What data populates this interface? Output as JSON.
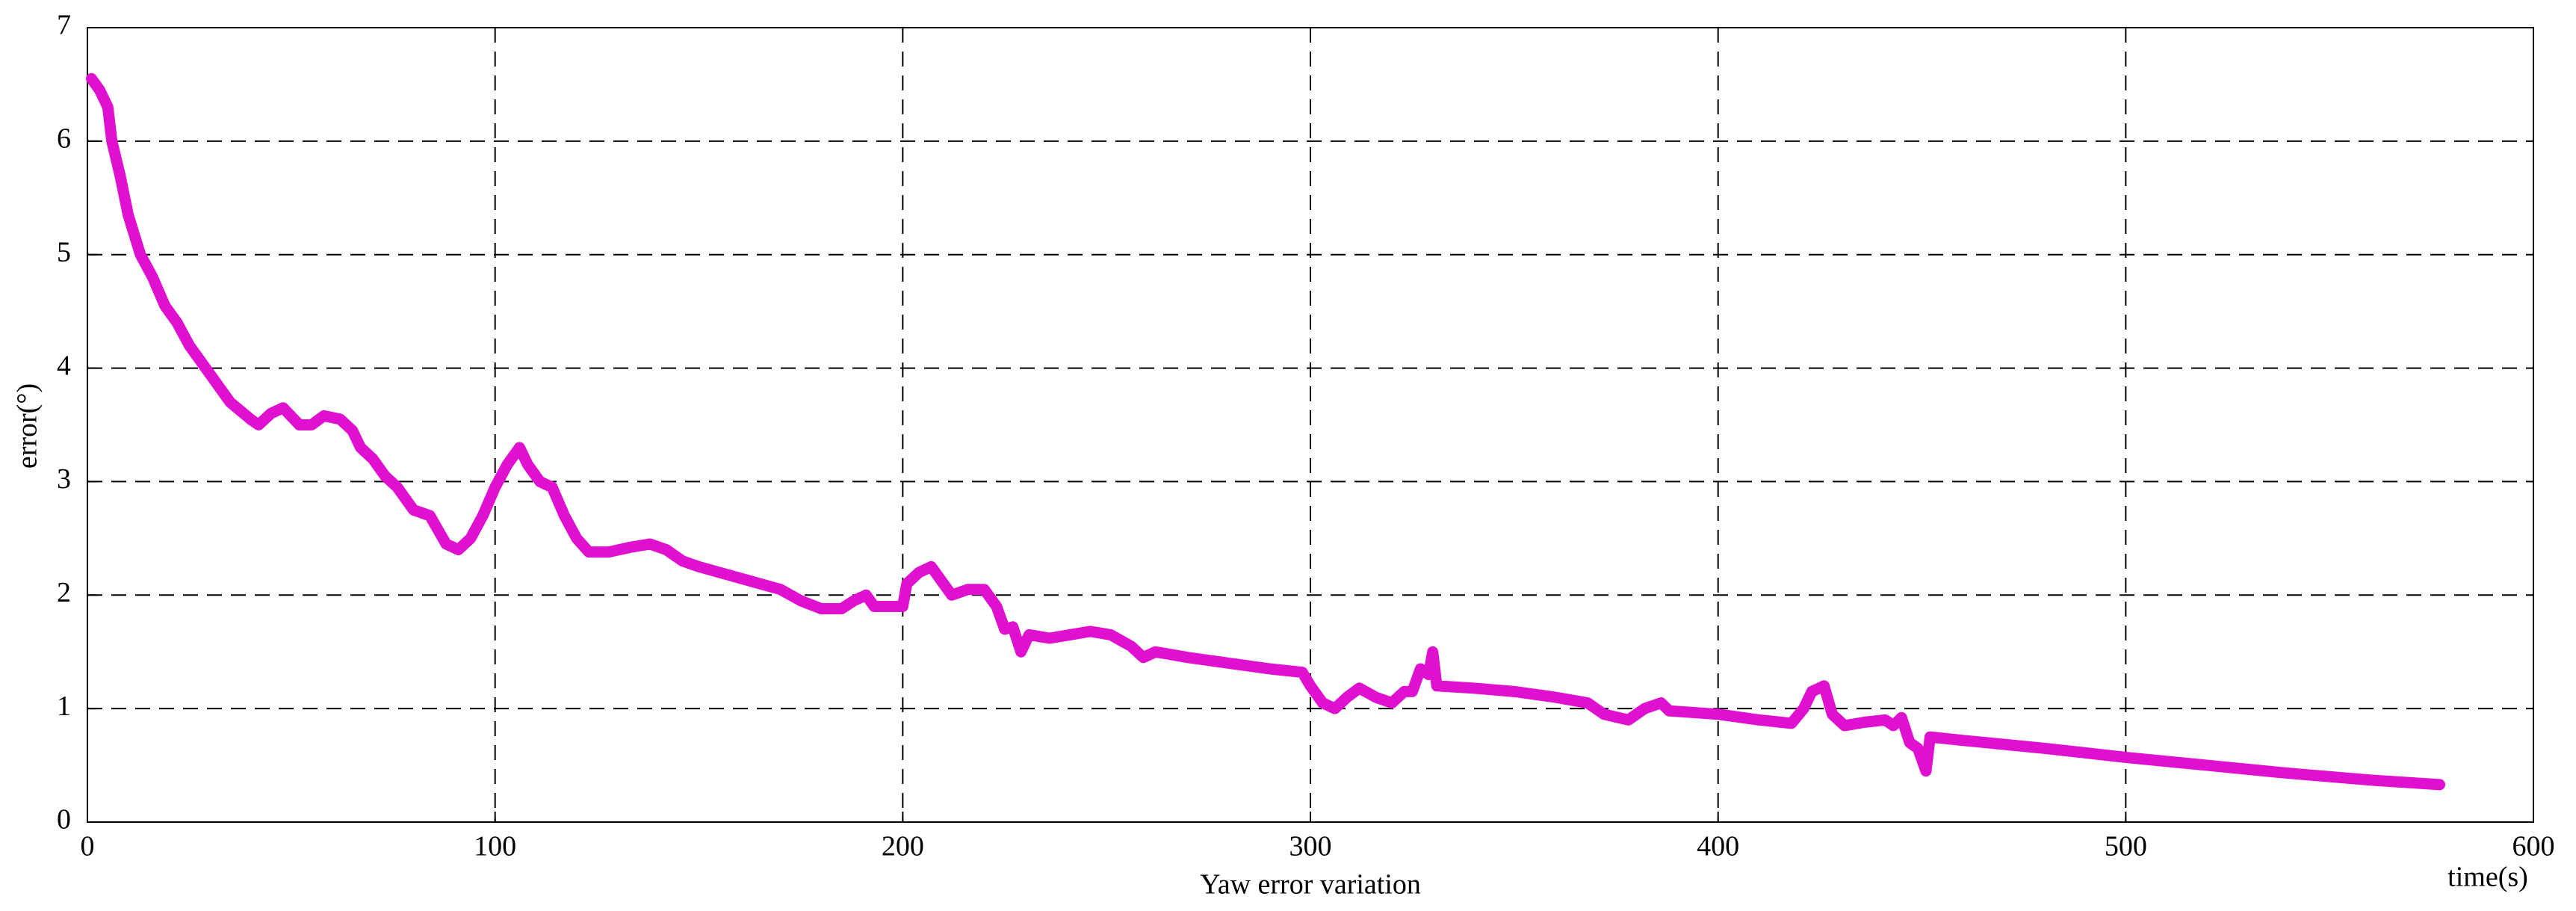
{
  "chart_data": {
    "type": "line",
    "title": "Yaw error variation",
    "xlabel": "time(s)",
    "ylabel": "error(°)",
    "xlim": [
      0,
      600
    ],
    "xticks": [
      0,
      100,
      200,
      300,
      400,
      500,
      600
    ],
    "ylim": [
      0,
      7
    ],
    "yticks": [
      0,
      1,
      2,
      3,
      4,
      5,
      6,
      7
    ],
    "grid": true,
    "series": [
      {
        "color": "#e010d0",
        "x": [
          1,
          3,
          5,
          6,
          8,
          10,
          13,
          16,
          19,
          22,
          25,
          30,
          35,
          40,
          42,
          45,
          48,
          52,
          55,
          58,
          62,
          65,
          67,
          70,
          73,
          76,
          80,
          84,
          88,
          91,
          94,
          97,
          100,
          103,
          106,
          108,
          111,
          114,
          117,
          120,
          123,
          128,
          133,
          138,
          142,
          146,
          150,
          155,
          160,
          165,
          170,
          175,
          180,
          185,
          188,
          191,
          193,
          197,
          200,
          201,
          204,
          207,
          210,
          212,
          216,
          220,
          223,
          225,
          227,
          229,
          231,
          236,
          241,
          246,
          251,
          256,
          259,
          262,
          270,
          280,
          290,
          298,
          300,
          303,
          306,
          309,
          312,
          316,
          320,
          323,
          325,
          327,
          329,
          330,
          331,
          340,
          350,
          360,
          368,
          372,
          378,
          382,
          386,
          388,
          400,
          410,
          418,
          421,
          423,
          426,
          428,
          431,
          436,
          441,
          443,
          445,
          447,
          449,
          451,
          452,
          460,
          480,
          500,
          520,
          540,
          560,
          577
        ],
        "values": [
          6.55,
          6.45,
          6.3,
          6.0,
          5.7,
          5.35,
          5.0,
          4.8,
          4.55,
          4.4,
          4.2,
          3.95,
          3.7,
          3.55,
          3.5,
          3.6,
          3.65,
          3.5,
          3.5,
          3.58,
          3.55,
          3.45,
          3.3,
          3.2,
          3.05,
          2.95,
          2.75,
          2.7,
          2.45,
          2.4,
          2.5,
          2.7,
          2.95,
          3.15,
          3.3,
          3.15,
          3.0,
          2.95,
          2.7,
          2.5,
          2.38,
          2.38,
          2.42,
          2.45,
          2.4,
          2.3,
          2.25,
          2.2,
          2.15,
          2.1,
          2.05,
          1.95,
          1.88,
          1.88,
          1.95,
          2.0,
          1.9,
          1.9,
          1.9,
          2.1,
          2.2,
          2.25,
          2.1,
          2.0,
          2.05,
          2.05,
          1.9,
          1.7,
          1.72,
          1.5,
          1.65,
          1.62,
          1.65,
          1.68,
          1.65,
          1.55,
          1.45,
          1.5,
          1.45,
          1.4,
          1.35,
          1.32,
          1.2,
          1.05,
          1.0,
          1.1,
          1.18,
          1.1,
          1.05,
          1.15,
          1.15,
          1.35,
          1.3,
          1.5,
          1.2,
          1.18,
          1.15,
          1.1,
          1.05,
          0.95,
          0.9,
          1.0,
          1.05,
          0.98,
          0.95,
          0.9,
          0.87,
          1.0,
          1.15,
          1.2,
          0.95,
          0.85,
          0.88,
          0.9,
          0.85,
          0.92,
          0.7,
          0.65,
          0.45,
          0.75,
          0.72,
          0.65,
          0.57,
          0.5,
          0.43,
          0.37,
          0.33
        ]
      }
    ]
  }
}
